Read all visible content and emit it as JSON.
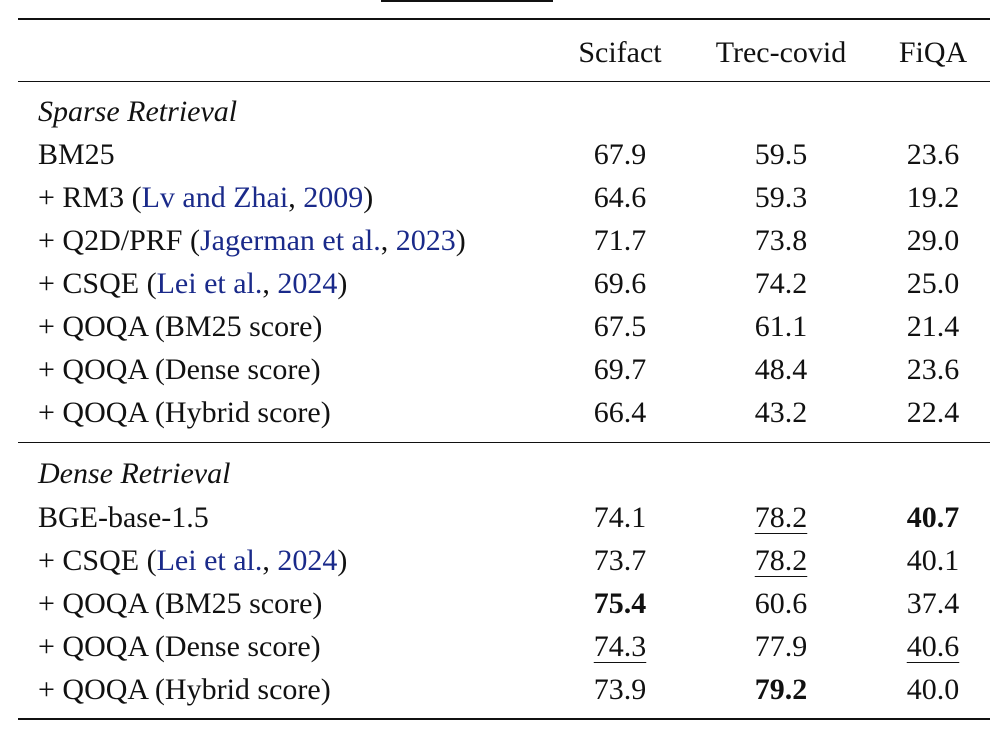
{
  "header": {
    "col1": "Scifact",
    "col2": "Trec-covid",
    "col3": "FiQA"
  },
  "sparse": {
    "title": "Sparse Retrieval",
    "rows": [
      {
        "pre": "BM25",
        "cite": "",
        "c2": "",
        "post": "",
        "v1": "67.9",
        "v2": "59.5",
        "v3": "23.6"
      },
      {
        "pre": "+ RM3 (",
        "cite": "Lv and Zhai",
        "c2": "2009",
        "post": ")",
        "v1": "64.6",
        "v2": "59.3",
        "v3": "19.2"
      },
      {
        "pre": "+ Q2D/PRF (",
        "cite": "Jagerman et al.",
        "c2": "2023",
        "post": ")",
        "v1": "71.7",
        "v2": "73.8",
        "v3": "29.0"
      },
      {
        "pre": "+ CSQE (",
        "cite": "Lei et al.",
        "c2": "2024",
        "post": ")",
        "v1": "69.6",
        "v2": "74.2",
        "v3": "25.0"
      },
      {
        "pre": "+ QOQA (BM25 score)",
        "cite": "",
        "c2": "",
        "post": "",
        "v1": "67.5",
        "v2": "61.1",
        "v3": "21.4"
      },
      {
        "pre": "+ QOQA (Dense score)",
        "cite": "",
        "c2": "",
        "post": "",
        "v1": "69.7",
        "v2": "48.4",
        "v3": "23.6"
      },
      {
        "pre": "+ QOQA (Hybrid score)",
        "cite": "",
        "c2": "",
        "post": "",
        "v1": "66.4",
        "v2": "43.2",
        "v3": "22.4"
      }
    ]
  },
  "dense": {
    "title": "Dense Retrieval",
    "rows": [
      {
        "pre": "BGE-base-1.5",
        "cite": "",
        "c2": "",
        "post": "",
        "v1": "74.1",
        "v2": "78.2",
        "v3": "40.7"
      },
      {
        "pre": "+ CSQE (",
        "cite": "Lei et al.",
        "c2": "2024",
        "post": ")",
        "v1": "73.7",
        "v2": "78.2",
        "v3": "40.1"
      },
      {
        "pre": "+ QOQA (BM25 score)",
        "cite": "",
        "c2": "",
        "post": "",
        "v1": "75.4",
        "v2": "60.6",
        "v3": "37.4"
      },
      {
        "pre": "+ QOQA (Dense score)",
        "cite": "",
        "c2": "",
        "post": "",
        "v1": "74.3",
        "v2": "77.9",
        "v3": "40.6"
      },
      {
        "pre": "+ QOQA (Hybrid score)",
        "cite": "",
        "c2": "",
        "post": "",
        "v1": "73.9",
        "v2": "79.2",
        "v3": "40.0"
      }
    ]
  }
}
